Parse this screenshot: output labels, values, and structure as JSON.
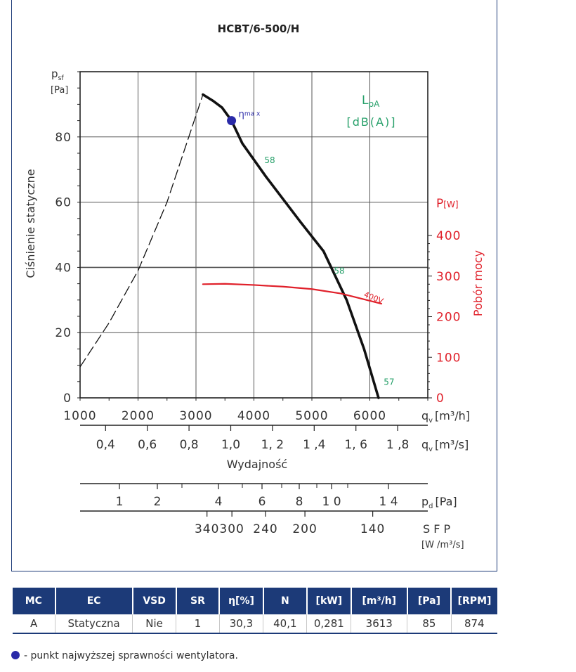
{
  "chart_data": {
    "type": "line",
    "title": "HCBT/6-500/H",
    "ylabel": "Ciśnienie statyczne",
    "y_unit_symbol": "p",
    "y_unit_sub": "sf",
    "y_unit": "[Pa]",
    "xlabel": "Wydajność",
    "xlim": [
      1000,
      7000
    ],
    "ylim": [
      0,
      100
    ],
    "x_ticks": [
      1000,
      2000,
      3000,
      4000,
      5000,
      6000
    ],
    "y_ticks": [
      0,
      20,
      40,
      60,
      80
    ],
    "x_unit_m3h_sym": "q",
    "x_unit_m3h_sub": "v",
    "x_unit_m3h": "[m³/h]",
    "x2_ticks": [
      0.4,
      0.6,
      0.8,
      1.0,
      1.2,
      1.4,
      1.6,
      1.8
    ],
    "x2_tick_labels": [
      "0,4",
      "0,6",
      "0,8",
      "1,0",
      "1, 2",
      "1 ,4",
      "1, 6",
      "1 ,8"
    ],
    "x2_unit_sym": "q",
    "x2_unit_sub": "v",
    "x2_unit": "[m³/s]",
    "pd_ticks": [
      1,
      2,
      4,
      6,
      8,
      10,
      14
    ],
    "pd_tick_labels": [
      "1",
      "2",
      "4",
      "6",
      "8",
      "1 0",
      "1 4"
    ],
    "pd_unit_sym": "p",
    "pd_unit_sub": "d",
    "pd_unit": "[Pa]",
    "sfp_ticks": [
      340,
      300,
      240,
      200,
      140
    ],
    "sfp_tick_x": [
      3190,
      3620,
      4200,
      4880,
      6050
    ],
    "sfp_unit": "S F P",
    "sfp_unit2": "[W /m³/s]",
    "power_axis": {
      "label": "Pobór mocy",
      "unit_sym": "P",
      "unit": "[W]",
      "ticks": [
        0,
        100,
        200,
        300,
        400
      ],
      "ylim": [
        0,
        400
      ],
      "color": "#e0202a"
    },
    "sound_label_sym": "L",
    "sound_label_sub": "pA",
    "sound_unit": "[dB(A)]",
    "sound_color": "#27a06a",
    "series": [
      {
        "name": "",
        "role": "fan curve",
        "color": "#111111",
        "x": [
          3120,
          3300,
          3450,
          3613,
          3800,
          4200,
          4800,
          5200,
          5600,
          5900,
          6150
        ],
        "y": [
          93,
          91,
          89,
          85,
          78,
          68,
          54,
          45,
          30,
          15,
          0
        ]
      },
      {
        "name": "",
        "role": "system curve",
        "dashed": true,
        "color": "#111111",
        "x": [
          1000,
          1500,
          2000,
          2500,
          3120
        ],
        "y": [
          9.5,
          23,
          39,
          60,
          93
        ]
      },
      {
        "name": "400V",
        "role": "power",
        "axis": "power",
        "color": "#e0202a",
        "x": [
          3120,
          3500,
          4000,
          4500,
          5000,
          5500,
          6200
        ],
        "y": [
          280,
          281,
          278,
          274,
          268,
          257,
          232
        ]
      }
    ],
    "eta_point": {
      "x": 3613,
      "y": 85,
      "label": "η",
      "label_sub": "ma x",
      "color": "#2a2aa8"
    },
    "sound_labels": [
      {
        "x": 4180,
        "y": 72,
        "text": "58"
      },
      {
        "x": 5380,
        "y": 38,
        "text": "58"
      },
      {
        "x": 6240,
        "y": 4,
        "text": "57"
      }
    ]
  },
  "table": {
    "headers": [
      "MC",
      "EC",
      "VSD",
      "SR",
      "η[%]",
      "N",
      "[kW]",
      "[m³/h]",
      "[Pa]",
      "[RPM]"
    ],
    "row": [
      "A",
      "Statyczna",
      "Nie",
      "1",
      "30,3",
      "40,1",
      "0,281",
      "3613",
      "85",
      "874"
    ]
  },
  "note": "- punkt najwyższej sprawności wentylatora."
}
